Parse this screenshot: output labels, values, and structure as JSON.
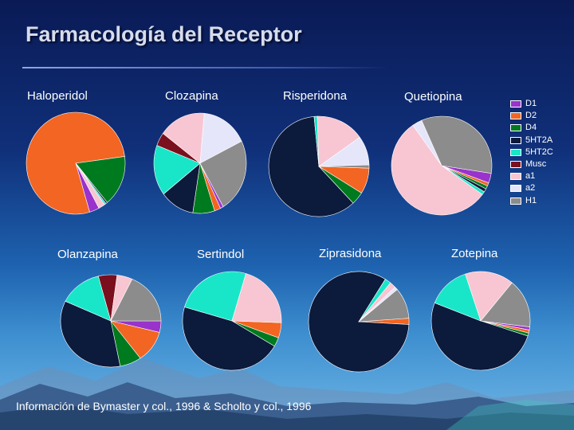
{
  "slide": {
    "title": "Farmacología del Receptor",
    "source": "Información de Bymaster y col., 1996 & Scholto y col., 1996"
  },
  "legend": [
    {
      "label": "D1",
      "color": "#9933cc"
    },
    {
      "label": "D2",
      "color": "#f26522"
    },
    {
      "label": "D4",
      "color": "#007a1f"
    },
    {
      "label": "5HT2A",
      "color": "#0c1a3c"
    },
    {
      "label": "5HT2C",
      "color": "#19e6c8"
    },
    {
      "label": "Musc",
      "color": "#7a0f1e"
    },
    {
      "label": "a1",
      "color": "#f7c6d2"
    },
    {
      "label": "a2",
      "color": "#e6e6fa"
    },
    {
      "label": "H1",
      "color": "#8c8c8c"
    }
  ],
  "chart_data": [
    {
      "type": "pie",
      "title": "Haloperidol",
      "series": [
        {
          "values": [
            3,
            72,
            15,
            0.5,
            0.5,
            0,
            2,
            0,
            0
          ]
        }
      ]
    },
    {
      "type": "pie",
      "title": "Clozapina",
      "series": [
        {
          "values": [
            1,
            2,
            7,
            11,
            15,
            4,
            15,
            15,
            22
          ]
        }
      ]
    },
    {
      "type": "pie",
      "title": "Risperidona",
      "series": [
        {
          "values": [
            0,
            8,
            4,
            58,
            1,
            0,
            15,
            9,
            1
          ]
        }
      ]
    },
    {
      "type": "pie",
      "title": "Quetiopina",
      "series": [
        {
          "values": [
            3,
            1,
            1,
            1,
            1,
            0,
            52,
            3,
            32
          ]
        }
      ]
    },
    {
      "type": "pie",
      "title": "Olanzapina",
      "series": [
        {
          "values": [
            4,
            11,
            7,
            35,
            14,
            6,
            5,
            0,
            18
          ]
        }
      ]
    },
    {
      "type": "pie",
      "title": "Sertindol",
      "series": [
        {
          "values": [
            0,
            5,
            3,
            46,
            25,
            0,
            21,
            0,
            0
          ]
        }
      ]
    },
    {
      "type": "pie",
      "title": "Ziprasidona",
      "series": [
        {
          "values": [
            0,
            2,
            0,
            83,
            2,
            0,
            2,
            1,
            10
          ]
        }
      ]
    },
    {
      "type": "pie",
      "title": "Zotepina",
      "series": [
        {
          "values": [
            1,
            1,
            1,
            51,
            14,
            0,
            16,
            0,
            16
          ]
        }
      ]
    }
  ]
}
